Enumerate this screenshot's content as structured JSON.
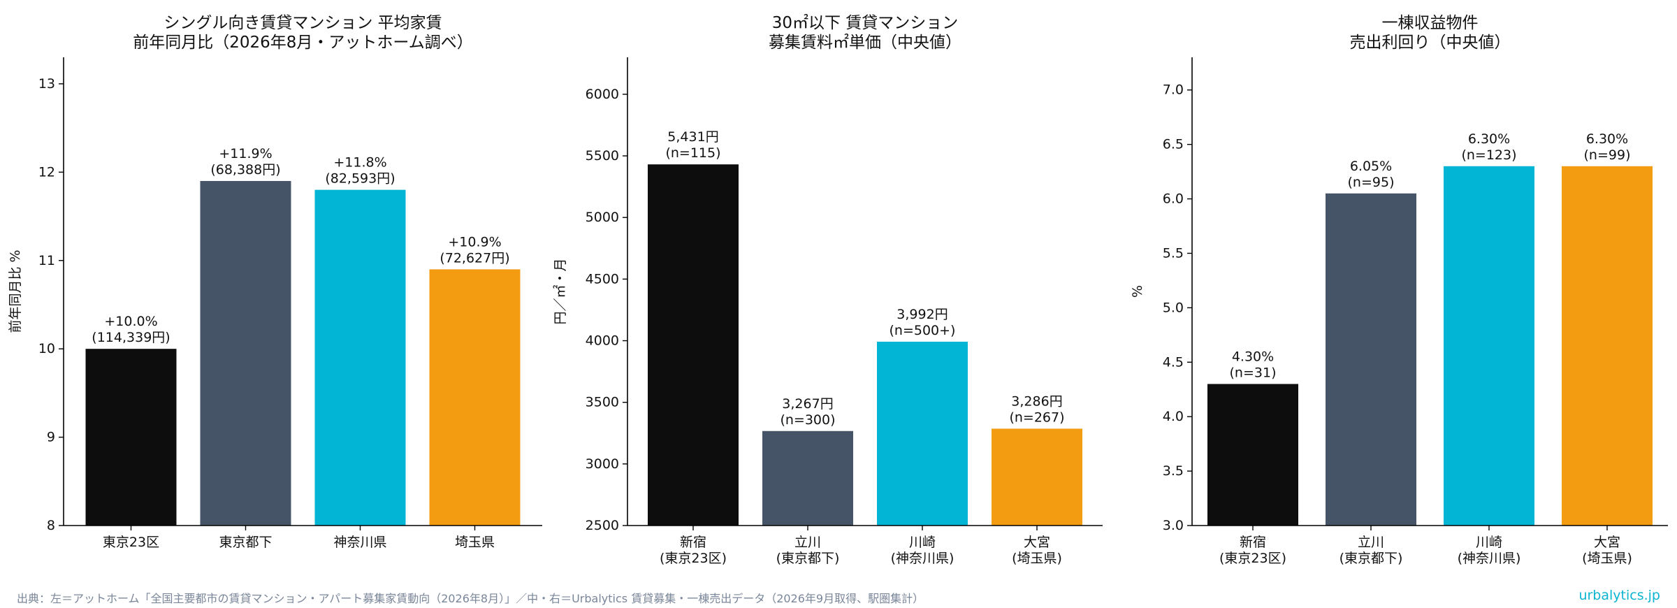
{
  "chart_data": [
    {
      "type": "bar",
      "title": [
        "シングル向き賃貸マンション 平均家賃",
        "前年同月比（2026年8月・アットホーム調べ）"
      ],
      "ylabel": "前年同月比 %",
      "ylim": [
        8,
        13.3
      ],
      "yticks": [
        "8",
        "9",
        "10",
        "11",
        "12",
        "13"
      ],
      "categories": [
        [
          "東京23区"
        ],
        [
          "東京都下"
        ],
        [
          "神奈川県"
        ],
        [
          "埼玉県"
        ]
      ],
      "values": [
        10.0,
        11.9,
        11.8,
        10.9
      ],
      "bar_labels": [
        [
          "+10.0%",
          "(114,339円)"
        ],
        [
          "+11.9%",
          "(68,388円)"
        ],
        [
          "+11.8%",
          "(82,593円)"
        ],
        [
          "+10.9%",
          "(72,627円)"
        ]
      ],
      "colors": [
        "#0d0d0d",
        "#465467",
        "#03b5d5",
        "#f39c12"
      ]
    },
    {
      "type": "bar",
      "title": [
        "30㎡以下 賃貸マンション",
        "募集賃料㎡単価（中央値）"
      ],
      "ylabel": "円／㎡・月",
      "ylim": [
        2500,
        6300
      ],
      "yticks": [
        "2500",
        "3000",
        "3500",
        "4000",
        "4500",
        "5000",
        "5500",
        "6000"
      ],
      "categories": [
        [
          "新宿",
          "(東京23区)"
        ],
        [
          "立川",
          "(東京都下)"
        ],
        [
          "川崎",
          "(神奈川県)"
        ],
        [
          "大宮",
          "(埼玉県)"
        ]
      ],
      "values": [
        5431,
        3267,
        3992,
        3286
      ],
      "bar_labels": [
        [
          "5,431円",
          "(n=115)"
        ],
        [
          "3,267円",
          "(n=300)"
        ],
        [
          "3,992円",
          "(n=500+)"
        ],
        [
          "3,286円",
          "(n=267)"
        ]
      ],
      "colors": [
        "#0d0d0d",
        "#465467",
        "#03b5d5",
        "#f39c12"
      ]
    },
    {
      "type": "bar",
      "title": [
        "一棟収益物件",
        "売出利回り（中央値）"
      ],
      "ylabel": "%",
      "ylim": [
        3.0,
        7.3
      ],
      "yticks": [
        "3.0",
        "3.5",
        "4.0",
        "4.5",
        "5.0",
        "5.5",
        "6.0",
        "6.5",
        "7.0"
      ],
      "categories": [
        [
          "新宿",
          "(東京23区)"
        ],
        [
          "立川",
          "(東京都下)"
        ],
        [
          "川崎",
          "(神奈川県)"
        ],
        [
          "大宮",
          "(埼玉県)"
        ]
      ],
      "values": [
        4.3,
        6.05,
        6.3,
        6.3
      ],
      "bar_labels": [
        [
          "4.30%",
          "(n=31)"
        ],
        [
          "6.05%",
          "(n=95)"
        ],
        [
          "6.30%",
          "(n=123)"
        ],
        [
          "6.30%",
          "(n=99)"
        ]
      ],
      "colors": [
        "#0d0d0d",
        "#465467",
        "#03b5d5",
        "#f39c12"
      ]
    }
  ],
  "footer": {
    "source": "出典：左＝アットホーム「全国主要都市の賃貸マンション・アパート募集家賃動向（2026年8月）」／中・右＝Urbalytics 賃貸募集・一棟売出データ（2026年9月取得、駅圏集計）",
    "brand": "urbalytics.jp",
    "brand_color": "#0bb4d0"
  }
}
